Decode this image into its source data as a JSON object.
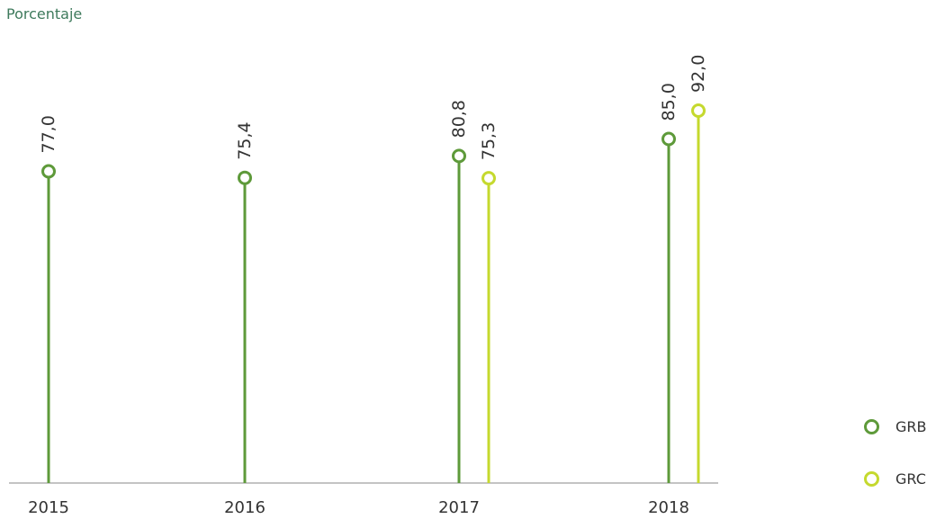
{
  "chart_data": {
    "type": "lollipop",
    "ylabel": "Porcentaje",
    "categories": [
      "2015",
      "2016",
      "2017",
      "2018"
    ],
    "ylim": [
      0,
      100
    ],
    "grid": false,
    "legend_position": "bottom-right",
    "series": [
      {
        "name": "GRB",
        "color": "#5e9a3a",
        "values": [
          77.0,
          75.4,
          80.8,
          85.0
        ],
        "labels": [
          "77,0",
          "75,4",
          "80,8",
          "85,0"
        ]
      },
      {
        "name": "GRC",
        "color": "#c5d92e",
        "values": [
          null,
          null,
          75.3,
          92.0
        ],
        "labels": [
          null,
          null,
          "75,3",
          "92,0"
        ]
      }
    ]
  }
}
